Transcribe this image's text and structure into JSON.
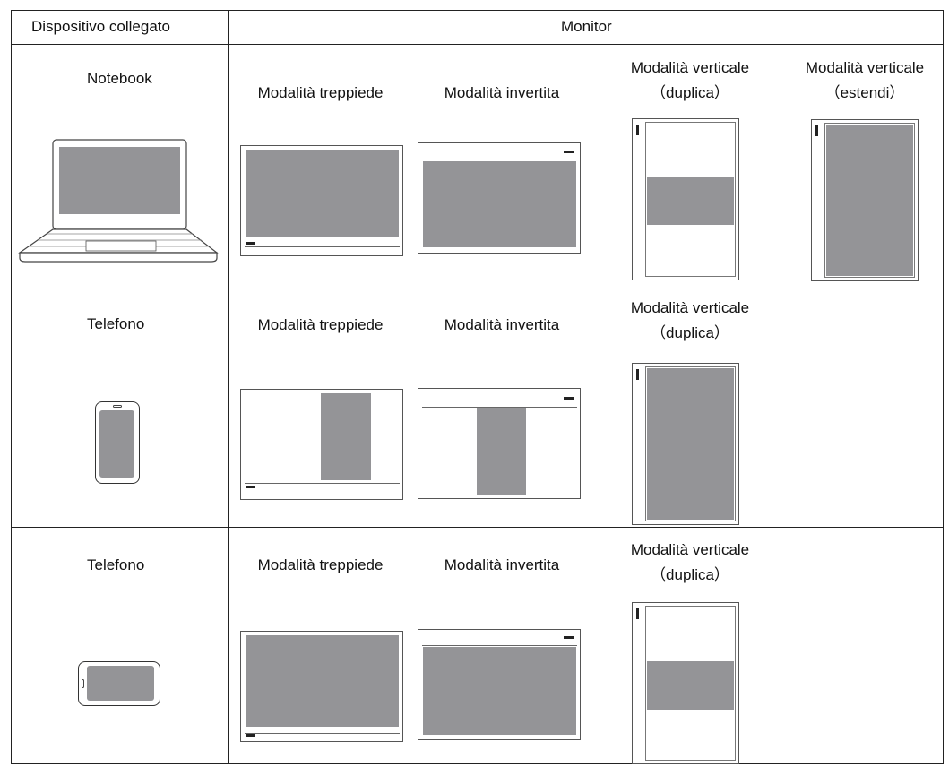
{
  "header": {
    "device_column": "Dispositivo collegato",
    "monitor_column": "Monitor"
  },
  "rows": [
    {
      "device": "Notebook",
      "modes": [
        {
          "line1": "Modalità treppiede",
          "line2": ""
        },
        {
          "line1": "Modalità invertita",
          "line2": ""
        },
        {
          "line1": "Modalità verticale",
          "line2": "（duplica）"
        },
        {
          "line1": "Modalità verticale",
          "line2": "（estendi）"
        }
      ]
    },
    {
      "device": "Telefono",
      "modes": [
        {
          "line1": "Modalità treppiede",
          "line2": ""
        },
        {
          "line1": "Modalità invertita",
          "line2": ""
        },
        {
          "line1": "Modalità verticale",
          "line2": "（duplica）"
        }
      ]
    },
    {
      "device": "Telefono",
      "modes": [
        {
          "line1": "Modalità treppiede",
          "line2": ""
        },
        {
          "line1": "Modalità invertita",
          "line2": ""
        },
        {
          "line1": "Modalità verticale",
          "line2": "（duplica）"
        }
      ]
    }
  ],
  "colors": {
    "screen_fill": "#949497",
    "line": "#333333"
  },
  "icons": [
    "notebook-icon",
    "phone-portrait-icon",
    "phone-landscape-icon",
    "monitor-icon"
  ]
}
